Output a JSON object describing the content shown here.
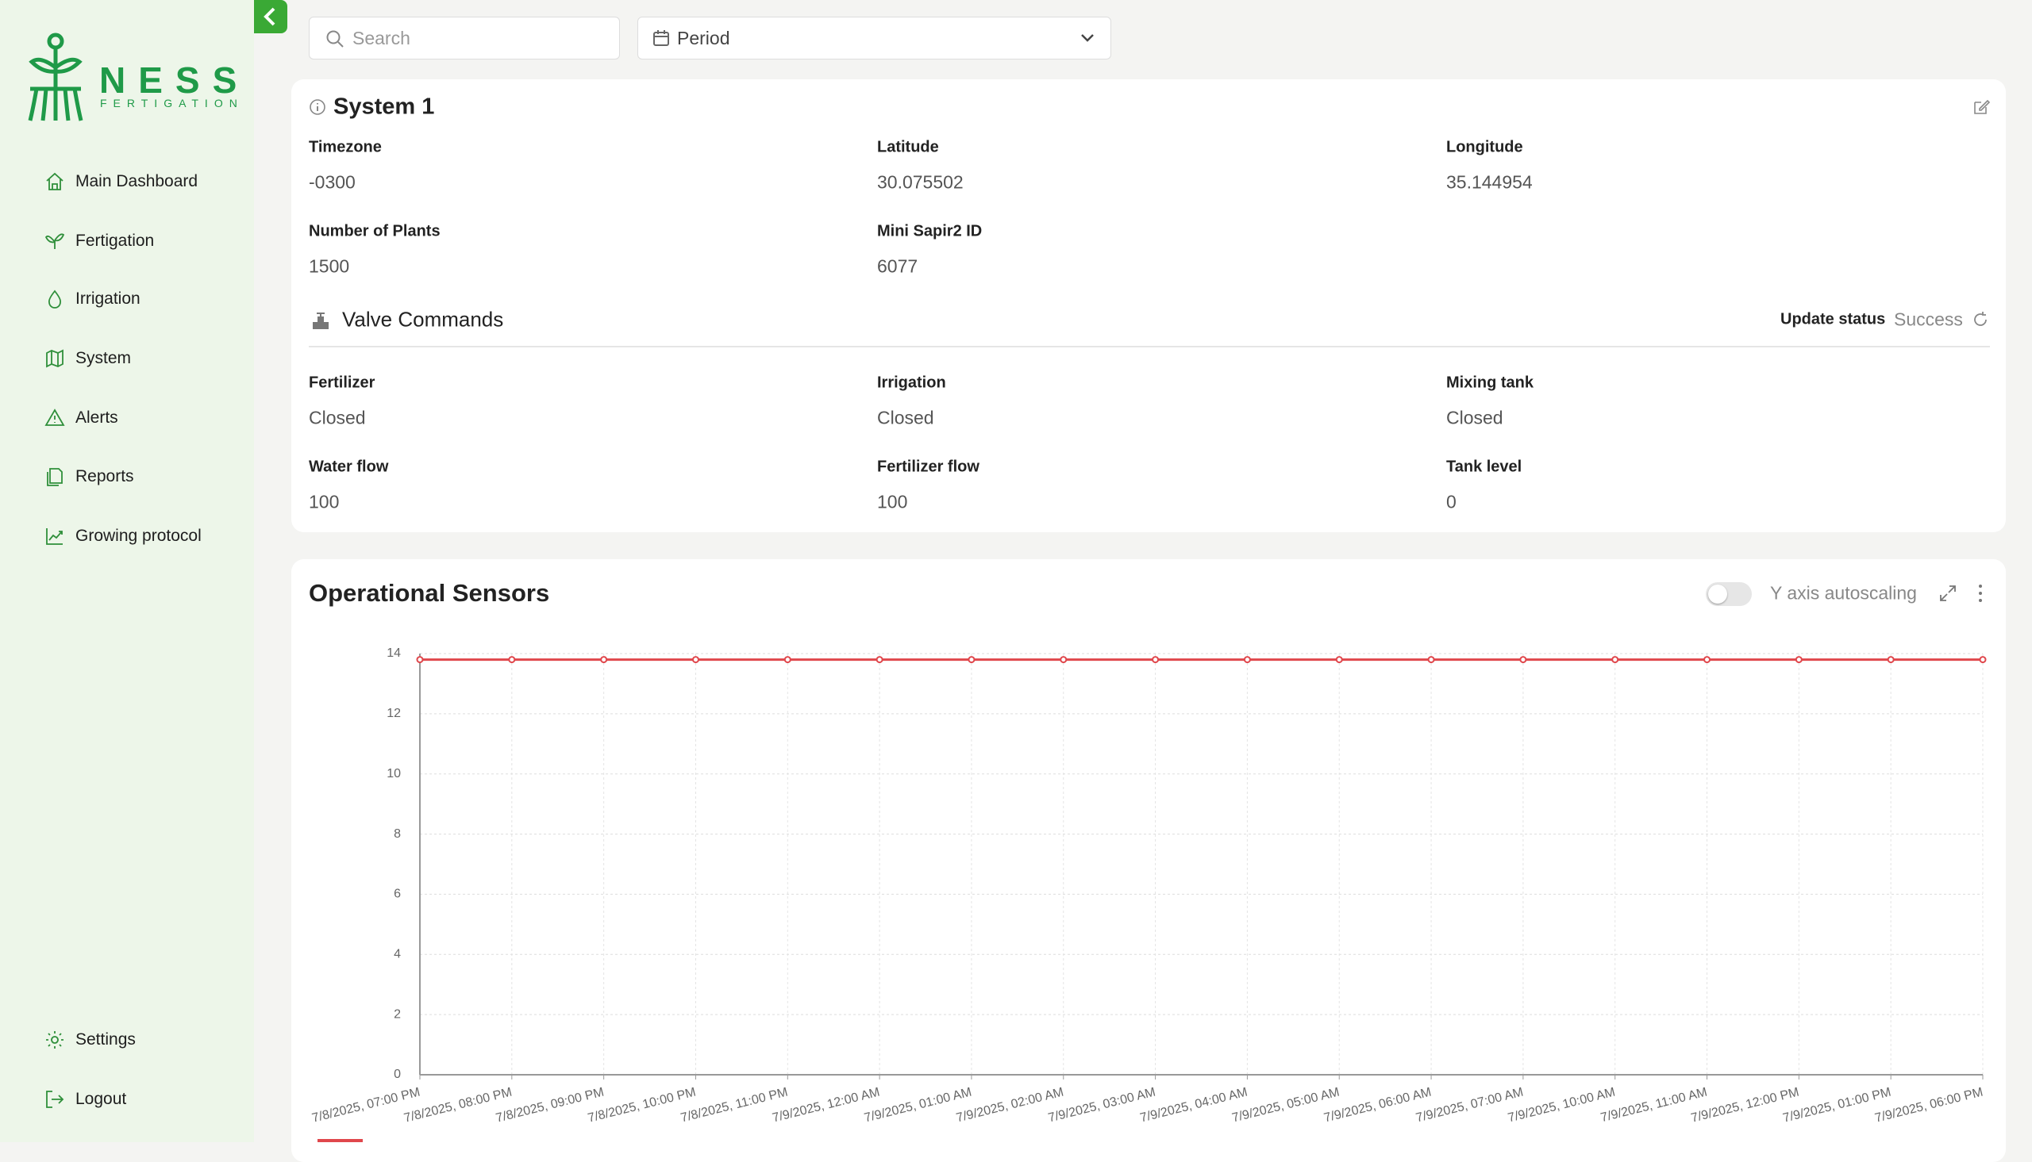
{
  "sidebar": {
    "logo": {
      "name": "NESS",
      "tagline": "FERTIGATION"
    },
    "nav": [
      "Main Dashboard",
      "Fertigation",
      "Irrigation",
      "System",
      "Alerts",
      "Reports",
      "Growing protocol"
    ],
    "bottom": [
      "Settings",
      "Logout"
    ]
  },
  "toolbar": {
    "search_placeholder": "Search",
    "period": "Period"
  },
  "system_card": {
    "title": "System 1",
    "fields": [
      {
        "label": "Timezone",
        "value": "-0300"
      },
      {
        "label": "Latitude",
        "value": "30.075502"
      },
      {
        "label": "Longitude",
        "value": "35.144954"
      },
      {
        "label": "Number of Plants",
        "value": "1500"
      },
      {
        "label": "Mini Sapir2 ID",
        "value": "6077"
      }
    ]
  },
  "valve_commands": {
    "title": "Valve Commands",
    "update_status_label": "Update status",
    "update_status": "Success",
    "fields": [
      {
        "label": "Fertilizer",
        "value": "Closed"
      },
      {
        "label": "Irrigation",
        "value": "Closed"
      },
      {
        "label": "Mixing tank",
        "value": "Closed"
      },
      {
        "label": "Water flow",
        "value": "100"
      },
      {
        "label": "Fertilizer flow",
        "value": "100"
      },
      {
        "label": "Tank level",
        "value": "0"
      }
    ]
  },
  "sensors": {
    "title": "Operational Sensors",
    "autoscaling_label": "Y axis autoscaling"
  },
  "chart_data": {
    "type": "line",
    "categories": [
      "7/8/2025, 07:00 PM",
      "7/8/2025, 08:00 PM",
      "7/8/2025, 09:00 PM",
      "7/8/2025, 10:00 PM",
      "7/8/2025, 11:00 PM",
      "7/9/2025, 12:00 AM",
      "7/9/2025, 01:00 AM",
      "7/9/2025, 02:00 AM",
      "7/9/2025, 03:00 AM",
      "7/9/2025, 04:00 AM",
      "7/9/2025, 05:00 AM",
      "7/9/2025, 06:00 AM",
      "7/9/2025, 07:00 AM",
      "7/9/2025, 10:00 AM",
      "7/9/2025, 11:00 AM",
      "7/9/2025, 12:00 PM",
      "7/9/2025, 01:00 PM",
      "7/9/2025, 06:00 PM"
    ],
    "values": [
      13.8,
      13.8,
      13.8,
      13.8,
      13.8,
      13.8,
      13.8,
      13.8,
      13.8,
      13.8,
      13.8,
      13.8,
      13.8,
      13.8,
      13.8,
      13.8,
      13.8,
      13.8
    ],
    "color": "#e0474c",
    "ylim": [
      0,
      14
    ],
    "yticks": [
      0,
      2,
      4,
      6,
      8,
      10,
      12,
      14
    ],
    "grid": true
  }
}
